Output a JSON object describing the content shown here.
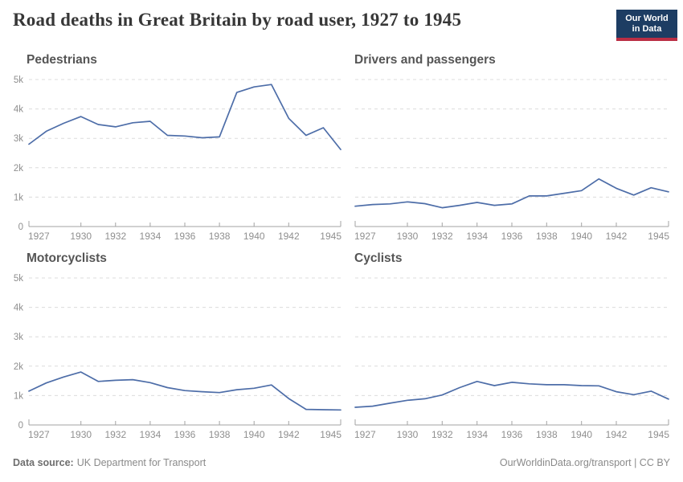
{
  "header": {
    "title": "Road deaths in Great Britain by road user, 1927 to 1945",
    "logo": {
      "line1": "Our World",
      "line2": "in Data"
    }
  },
  "footer": {
    "source_label": "Data source:",
    "source_value": "UK Department for Transport",
    "link_text": "OurWorldinData.org/transport | CC BY"
  },
  "colors": {
    "line": "#4d6da8",
    "grid": "#dcdcdc",
    "axis": "#a3a3a3",
    "tick_label": "#8f8f8f",
    "panel_title": "#555555",
    "main_title": "#373737",
    "footer_text": "#8a8a8a",
    "footer_label": "#6e6e6e",
    "logo_bg": "#1d3d63",
    "logo_bar": "#ba2e44"
  },
  "chart_data": [
    {
      "type": "line",
      "title": "Pedestrians",
      "x": [
        1927,
        1928,
        1929,
        1930,
        1931,
        1932,
        1933,
        1934,
        1935,
        1936,
        1937,
        1938,
        1939,
        1940,
        1941,
        1942,
        1943,
        1944,
        1945
      ],
      "values": [
        2800,
        3240,
        3510,
        3740,
        3470,
        3390,
        3530,
        3580,
        3100,
        3080,
        3020,
        3050,
        4560,
        4750,
        4830,
        3680,
        3100,
        3360,
        2620
      ],
      "ylim": [
        0,
        5000
      ],
      "grid": true,
      "show_y_labels": true,
      "yticks": [
        {
          "v": 0,
          "label": "0"
        },
        {
          "v": 1000,
          "label": "1k"
        },
        {
          "v": 2000,
          "label": "2k"
        },
        {
          "v": 3000,
          "label": "3k"
        },
        {
          "v": 4000,
          "label": "4k"
        },
        {
          "v": 5000,
          "label": "5k"
        }
      ],
      "xticks": [
        1927,
        1930,
        1932,
        1934,
        1936,
        1938,
        1940,
        1942,
        1945
      ]
    },
    {
      "type": "line",
      "title": "Drivers and passengers",
      "x": [
        1927,
        1928,
        1929,
        1930,
        1931,
        1932,
        1933,
        1934,
        1935,
        1936,
        1937,
        1938,
        1939,
        1940,
        1941,
        1942,
        1943,
        1944,
        1945
      ],
      "values": [
        690,
        750,
        770,
        840,
        780,
        640,
        720,
        820,
        720,
        770,
        1040,
        1040,
        1130,
        1220,
        1620,
        1300,
        1070,
        1320,
        1180
      ],
      "ylim": [
        0,
        5000
      ],
      "grid": true,
      "show_y_labels": false,
      "yticks": [
        {
          "v": 0,
          "label": "0"
        },
        {
          "v": 1000,
          "label": "1k"
        },
        {
          "v": 2000,
          "label": "2k"
        },
        {
          "v": 3000,
          "label": "3k"
        },
        {
          "v": 4000,
          "label": "4k"
        },
        {
          "v": 5000,
          "label": "5k"
        }
      ],
      "xticks": [
        1927,
        1930,
        1932,
        1934,
        1936,
        1938,
        1940,
        1942,
        1945
      ]
    },
    {
      "type": "line",
      "title": "Motorcyclists",
      "x": [
        1927,
        1928,
        1929,
        1930,
        1931,
        1932,
        1933,
        1934,
        1935,
        1936,
        1937,
        1938,
        1939,
        1940,
        1941,
        1942,
        1943,
        1944,
        1945
      ],
      "values": [
        1150,
        1430,
        1630,
        1800,
        1480,
        1520,
        1540,
        1440,
        1270,
        1170,
        1130,
        1100,
        1200,
        1250,
        1360,
        900,
        530,
        520,
        510
      ],
      "ylim": [
        0,
        5000
      ],
      "grid": true,
      "show_y_labels": true,
      "yticks": [
        {
          "v": 0,
          "label": "0"
        },
        {
          "v": 1000,
          "label": "1k"
        },
        {
          "v": 2000,
          "label": "2k"
        },
        {
          "v": 3000,
          "label": "3k"
        },
        {
          "v": 4000,
          "label": "4k"
        },
        {
          "v": 5000,
          "label": "5k"
        }
      ],
      "xticks": [
        1927,
        1930,
        1932,
        1934,
        1936,
        1938,
        1940,
        1942,
        1945
      ]
    },
    {
      "type": "line",
      "title": "Cyclists",
      "x": [
        1927,
        1928,
        1929,
        1930,
        1931,
        1932,
        1933,
        1934,
        1935,
        1936,
        1937,
        1938,
        1939,
        1940,
        1941,
        1942,
        1943,
        1944,
        1945
      ],
      "values": [
        600,
        640,
        740,
        840,
        890,
        1020,
        1270,
        1480,
        1340,
        1450,
        1400,
        1370,
        1370,
        1340,
        1330,
        1130,
        1030,
        1150,
        880
      ],
      "ylim": [
        0,
        5000
      ],
      "grid": true,
      "show_y_labels": false,
      "yticks": [
        {
          "v": 0,
          "label": "0"
        },
        {
          "v": 1000,
          "label": "1k"
        },
        {
          "v": 2000,
          "label": "2k"
        },
        {
          "v": 3000,
          "label": "3k"
        },
        {
          "v": 4000,
          "label": "4k"
        },
        {
          "v": 5000,
          "label": "5k"
        }
      ],
      "xticks": [
        1927,
        1930,
        1932,
        1934,
        1936,
        1938,
        1940,
        1942,
        1945
      ]
    }
  ]
}
